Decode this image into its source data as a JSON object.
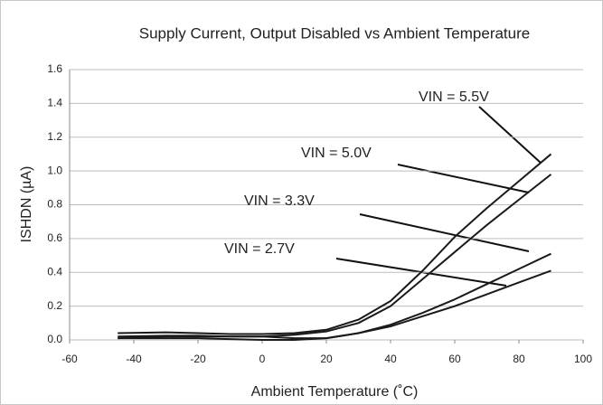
{
  "chart_data": {
    "type": "line",
    "title": "Supply Current, Output Disabled vs Ambient Temperature",
    "x_label": "Ambient Temperature (˚C)",
    "y_label": "ISHDN (µA)",
    "x": [
      -45,
      -30,
      -20,
      -10,
      0,
      10,
      20,
      30,
      40,
      50,
      60,
      70,
      80,
      90
    ],
    "series": [
      {
        "name": "VIN = 5.5V",
        "color": "#1a1a1a",
        "values": [
          0.04,
          0.045,
          0.04,
          0.035,
          0.035,
          0.04,
          0.06,
          0.12,
          0.23,
          0.41,
          0.61,
          0.78,
          0.94,
          1.1
        ]
      },
      {
        "name": "VIN = 5.0V",
        "color": "#1a1a1a",
        "values": [
          0.02,
          0.025,
          0.025,
          0.02,
          0.02,
          0.03,
          0.05,
          0.1,
          0.2,
          0.36,
          0.52,
          0.68,
          0.83,
          0.98
        ]
      },
      {
        "name": "VIN = 3.3V",
        "color": "#1a1a1a",
        "values": [
          0.01,
          0.02,
          0.02,
          0.02,
          0.02,
          0.01,
          0.01,
          0.04,
          0.09,
          0.16,
          0.24,
          0.33,
          0.42,
          0.51
        ]
      },
      {
        "name": "VIN = 2.7V",
        "color": "#1a1a1a",
        "values": [
          0.01,
          0.01,
          0.01,
          0.005,
          0.0,
          0.0,
          0.01,
          0.04,
          0.08,
          0.14,
          0.2,
          0.27,
          0.34,
          0.41
        ]
      }
    ],
    "xlim": [
      -60,
      100
    ],
    "xticks": [
      -60,
      -40,
      -20,
      0,
      20,
      40,
      60,
      80,
      100
    ],
    "ylim": [
      0,
      1.6
    ],
    "yticks": [
      {
        "value": 0,
        "label": "0.0"
      },
      {
        "value": 0.2,
        "label": "0.2"
      },
      {
        "value": 0.4,
        "label": "0.4"
      },
      {
        "value": 0.6,
        "label": "0.6"
      },
      {
        "value": 0.8,
        "label": "0.8"
      },
      {
        "value": 1.0,
        "label": "1.0"
      },
      {
        "value": 1.2,
        "label": "1.2"
      },
      {
        "value": 1.4,
        "label": "1.4"
      },
      {
        "value": 1.6,
        "label": "1.6"
      }
    ],
    "grid": true
  }
}
